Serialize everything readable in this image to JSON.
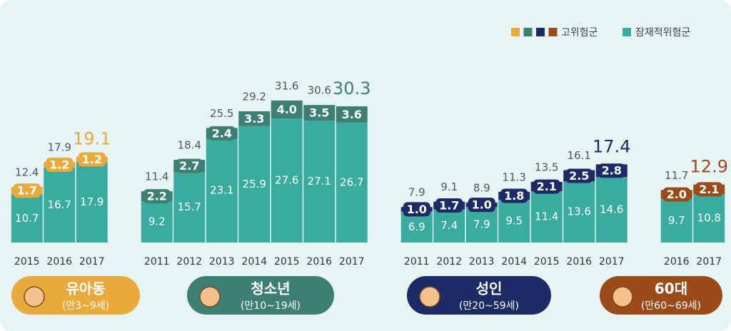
{
  "chart_data": {
    "type": "stacked-bar",
    "legend": {
      "high": "고위험군",
      "latent": "잠재적위험군"
    },
    "latent_color": "#3aab9f",
    "groups": [
      {
        "name": "유아동",
        "range": "(만3~9세)",
        "color": "#e9a93b",
        "categories": [
          "2015",
          "2016",
          "2017"
        ],
        "latent": [
          10.7,
          16.7,
          17.9
        ],
        "high": [
          1.7,
          1.2,
          1.2
        ],
        "totals": [
          12.4,
          17.9,
          19.1
        ]
      },
      {
        "name": "청소년",
        "range": "(만10~19세)",
        "color": "#3d7f72",
        "categories": [
          "2011",
          "2012",
          "2013",
          "2014",
          "2015",
          "2016",
          "2017"
        ],
        "latent": [
          9.2,
          15.7,
          23.1,
          25.9,
          27.6,
          27.1,
          26.7
        ],
        "high": [
          2.2,
          2.7,
          2.4,
          3.3,
          4.0,
          3.5,
          3.6
        ],
        "value_labels_high": [
          "2.2",
          "2.7",
          "2.4",
          "3.3",
          "4.0",
          "3.5",
          "3.6"
        ],
        "totals": [
          11.4,
          18.4,
          25.5,
          29.2,
          31.6,
          30.6,
          30.3
        ]
      },
      {
        "name": "성인",
        "range": "(만20~59세)",
        "color": "#1c2a66",
        "categories": [
          "2011",
          "2012",
          "2013",
          "2014",
          "2015",
          "2016",
          "2017"
        ],
        "latent": [
          6.9,
          7.4,
          7.9,
          9.5,
          11.4,
          13.6,
          14.6
        ],
        "high": [
          1.0,
          1.7,
          1.0,
          1.8,
          2.1,
          2.5,
          2.8
        ],
        "value_labels_high": [
          "1.0",
          "1.7",
          "1.0",
          "1.8",
          "2.1",
          "2.5",
          "2.8"
        ],
        "totals": [
          7.9,
          9.1,
          8.9,
          11.3,
          13.5,
          16.1,
          17.4
        ]
      },
      {
        "name": "60대",
        "range": "(만60~69세)",
        "color": "#9b4a1a",
        "categories": [
          "2016",
          "2017"
        ],
        "latent": [
          9.7,
          10.8
        ],
        "high": [
          2.0,
          2.1
        ],
        "value_labels_high": [
          "2.0",
          "2.1"
        ],
        "totals": [
          11.7,
          12.9
        ]
      }
    ]
  }
}
